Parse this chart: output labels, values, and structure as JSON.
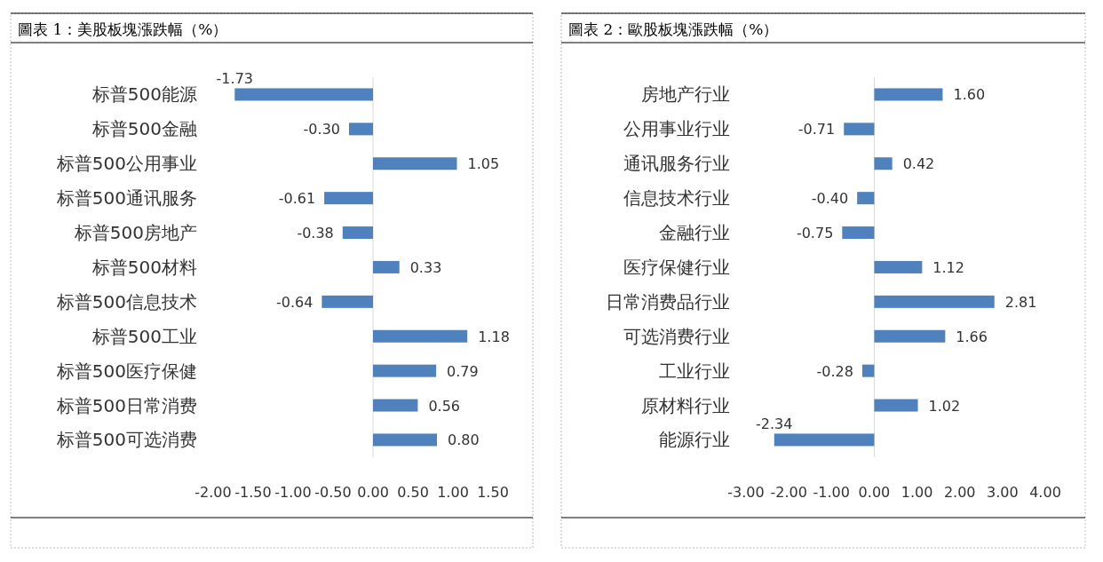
{
  "chart_data": [
    {
      "type": "bar",
      "orientation": "horizontal",
      "title": "圖表 1：美股板塊漲跌幅（%）",
      "categories": [
        "标普500能源",
        "标普500金融",
        "标普500公用事业",
        "标普500通讯服务",
        "标普500房地产",
        "标普500材料",
        "标普500信息技术",
        "标普500工业",
        "标普500医疗保健",
        "标普500日常消费",
        "标普500可选消费"
      ],
      "values": [
        -1.73,
        -0.3,
        1.05,
        -0.61,
        -0.38,
        0.33,
        -0.64,
        1.18,
        0.79,
        0.56,
        0.8
      ],
      "value_labels": [
        "-1.73",
        "-0.30",
        "1.05",
        "-0.61",
        "-0.38",
        "0.33",
        "-0.64",
        "1.18",
        "0.79",
        "0.56",
        "0.80"
      ],
      "color": "#4f81bd",
      "xlim": [
        -2,
        1.5
      ],
      "xticks": [
        {
          "value": -2,
          "label": "-2.00"
        },
        {
          "value": -1.5,
          "label": "-1.50"
        },
        {
          "value": -1,
          "label": "-1.00"
        },
        {
          "value": -0.5,
          "label": "-0.50"
        },
        {
          "value": 0,
          "label": "0.00"
        },
        {
          "value": 0.5,
          "label": "0.50"
        },
        {
          "value": 1,
          "label": "1.00"
        },
        {
          "value": 1.5,
          "label": "1.50"
        }
      ]
    },
    {
      "type": "bar",
      "orientation": "horizontal",
      "title": "圖表 2：歐股板塊漲跌幅（%）",
      "categories": [
        "房地产行业",
        "公用事业行业",
        "通讯服务行业",
        "信息技术行业",
        "金融行业",
        "医疗保健行业",
        "日常消费品行业",
        "可选消费行业",
        "工业行业",
        "原材料行业",
        "能源行业"
      ],
      "values": [
        1.6,
        -0.71,
        0.42,
        -0.4,
        -0.75,
        1.12,
        2.81,
        1.66,
        -0.28,
        1.02,
        -2.34
      ],
      "value_labels": [
        "1.60",
        "-0.71",
        "0.42",
        "-0.40",
        "-0.75",
        "1.12",
        "2.81",
        "1.66",
        "-0.28",
        "1.02",
        "-2.34"
      ],
      "color": "#4f81bd",
      "xlim": [
        -3,
        4
      ],
      "xticks": [
        {
          "value": -3,
          "label": "-3.00"
        },
        {
          "value": -2,
          "label": "-2.00"
        },
        {
          "value": -1,
          "label": "-1.00"
        },
        {
          "value": 0,
          "label": "0.00"
        },
        {
          "value": 1,
          "label": "1.00"
        },
        {
          "value": 2,
          "label": "2.00"
        },
        {
          "value": 3,
          "label": "3.00"
        },
        {
          "value": 4,
          "label": "4.00"
        }
      ]
    }
  ]
}
